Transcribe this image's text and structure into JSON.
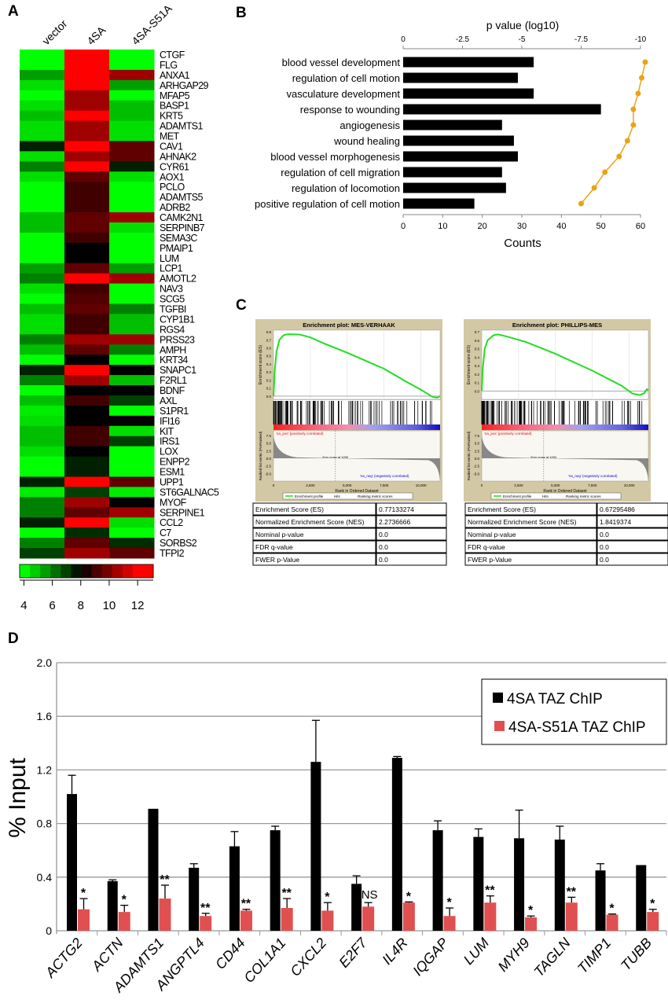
{
  "colors": {
    "heat_low": "#00ff00",
    "heat_mid": "#000000",
    "heat_high": "#ff0000",
    "bar_black": "#000000",
    "bar_red": "#e05050",
    "pvalue_line": "#e8a317",
    "es_curve": "#22dd22",
    "gsea_frame": "#d3c8a4"
  },
  "panel_labels": {
    "a": "A",
    "b": "B",
    "c": "C",
    "d": "D"
  },
  "chart_data": [
    {
      "panel": "A",
      "type": "heatmap",
      "columns": [
        "vector",
        "4SA",
        "4SA-S51A"
      ],
      "color_scale": {
        "colors": [
          "green",
          "black",
          "red"
        ],
        "ticks": [
          "4",
          "6",
          "8",
          "10",
          "12"
        ],
        "range": [
          3.7,
          13.1
        ]
      },
      "rows": [
        {
          "gene": "CTGF",
          "values": [
            4,
            13,
            4
          ]
        },
        {
          "gene": "FLG",
          "values": [
            4,
            13,
            4
          ]
        },
        {
          "gene": "ANXA1",
          "values": [
            5.5,
            13,
            10.5
          ]
        },
        {
          "gene": "ARHGAP29",
          "values": [
            4.5,
            13,
            5.5
          ]
        },
        {
          "gene": "MFAP5",
          "values": [
            4,
            10.5,
            4
          ]
        },
        {
          "gene": "BASP1",
          "values": [
            4.5,
            10.5,
            5
          ]
        },
        {
          "gene": "KRT5",
          "values": [
            5,
            12,
            5
          ]
        },
        {
          "gene": "ADAMTS1",
          "values": [
            4.5,
            10.5,
            4.5
          ]
        },
        {
          "gene": "MET",
          "values": [
            4.5,
            10.5,
            4.5
          ]
        },
        {
          "gene": "CAV1",
          "values": [
            7.5,
            13,
            9.5
          ]
        },
        {
          "gene": "AHNAK2",
          "values": [
            4.5,
            10.5,
            9.5
          ]
        },
        {
          "gene": "CYR61",
          "values": [
            6,
            12,
            7.5
          ]
        },
        {
          "gene": "AOX1",
          "values": [
            4.5,
            9.5,
            4.5
          ]
        },
        {
          "gene": "PCLO",
          "values": [
            4,
            9,
            4
          ]
        },
        {
          "gene": "ADAMTS5",
          "values": [
            4,
            9,
            4
          ]
        },
        {
          "gene": "ADRB2",
          "values": [
            4,
            9,
            4
          ]
        },
        {
          "gene": "CAMK2N1",
          "values": [
            5,
            9.5,
            10.5
          ]
        },
        {
          "gene": "SERPINB7",
          "values": [
            5,
            9.5,
            4.5
          ]
        },
        {
          "gene": "SEMA3C",
          "values": [
            4,
            9,
            4
          ]
        },
        {
          "gene": "PMAIP1",
          "values": [
            4,
            8,
            4
          ]
        },
        {
          "gene": "LUM",
          "values": [
            4,
            8,
            4
          ]
        },
        {
          "gene": "LCP1",
          "values": [
            5.5,
            9.5,
            5.5
          ]
        },
        {
          "gene": "AMOTL2",
          "values": [
            6,
            12,
            10.5
          ]
        },
        {
          "gene": "NAV3",
          "values": [
            4.5,
            9,
            4
          ]
        },
        {
          "gene": "SCG5",
          "values": [
            4,
            9.3,
            4
          ]
        },
        {
          "gene": "TGFBI",
          "values": [
            5,
            9.5,
            6
          ]
        },
        {
          "gene": "CYP1B1",
          "values": [
            4.5,
            9,
            5
          ]
        },
        {
          "gene": "RGS4",
          "values": [
            4.5,
            9,
            5
          ]
        },
        {
          "gene": "PRSS23",
          "values": [
            6,
            10.5,
            10.5
          ]
        },
        {
          "gene": "AMPH",
          "values": [
            5,
            9.5,
            6
          ]
        },
        {
          "gene": "KRT34",
          "values": [
            4,
            8,
            4
          ]
        },
        {
          "gene": "SNAPC1",
          "values": [
            7.5,
            13,
            8
          ]
        },
        {
          "gene": "F2RL1",
          "values": [
            6,
            10.5,
            5
          ]
        },
        {
          "gene": "BDNF",
          "values": [
            4,
            8,
            8
          ]
        },
        {
          "gene": "AXL",
          "values": [
            5,
            9,
            7
          ]
        },
        {
          "gene": "S1PR1",
          "values": [
            4.3,
            8,
            4
          ]
        },
        {
          "gene": "IFI16",
          "values": [
            4.5,
            8,
            8
          ]
        },
        {
          "gene": "KIT",
          "values": [
            5,
            9,
            4.5
          ]
        },
        {
          "gene": "IRS1",
          "values": [
            5,
            9,
            7
          ]
        },
        {
          "gene": "LOX",
          "values": [
            4.5,
            8,
            4
          ]
        },
        {
          "gene": "ENPP2",
          "values": [
            4,
            7.5,
            4
          ]
        },
        {
          "gene": "ESM1",
          "values": [
            4,
            7.5,
            4
          ]
        },
        {
          "gene": "UPP1",
          "values": [
            7.5,
            13,
            9.5
          ]
        },
        {
          "gene": "ST6GALNAC5",
          "values": [
            4.3,
            7,
            4.3
          ]
        },
        {
          "gene": "MYOF",
          "values": [
            6,
            10.5,
            8
          ]
        },
        {
          "gene": "SERPINE1",
          "values": [
            6,
            9.5,
            10.5
          ]
        },
        {
          "gene": "CCL2",
          "values": [
            7.5,
            13,
            4.5
          ]
        },
        {
          "gene": "C7",
          "values": [
            4,
            7.3,
            4
          ]
        },
        {
          "gene": "SORBS2",
          "values": [
            6,
            9.5,
            7.3
          ]
        },
        {
          "gene": "TFPI2",
          "values": [
            7,
            10.5,
            9.5
          ]
        }
      ]
    },
    {
      "panel": "B",
      "type": "bar",
      "orientation": "horizontal",
      "categories": [
        "blood vessel development",
        "regulation of cell motion",
        "vasculature development",
        "response to wounding",
        "angiogenesis",
        "wound healing",
        "blood vessel morphogenesis",
        "regulation of cell migration",
        "regulation of locomotion",
        "positive regulation of cell motion"
      ],
      "counts": [
        33,
        29,
        33,
        50,
        25,
        28,
        29,
        25,
        26,
        18
      ],
      "p_value_log10": [
        -10.2,
        -10.05,
        -9.9,
        -9.7,
        -9.7,
        -9.45,
        -9.1,
        -8.5,
        -8.05,
        -7.5
      ],
      "xlabel": "Counts",
      "xlim": [
        0,
        60
      ],
      "xticks": [
        "0",
        "10",
        "20",
        "30",
        "40",
        "50",
        "60"
      ],
      "top_axis_label": "p value (log10)",
      "top_xlim": [
        0,
        -10
      ],
      "top_xticks": [
        "0",
        "-2.5",
        "-5",
        "-7.5",
        "-10"
      ]
    },
    {
      "panel": "C",
      "type": "line",
      "plots": [
        {
          "title": "Enrichment plot: MES-VERHAAK",
          "es_ticks": [
            "0.8",
            "0.7",
            "0.6",
            "0.5",
            "0.4",
            "0.3",
            "0.2",
            "0.1",
            "0.0"
          ],
          "es_range": [
            -0.04,
            0.82
          ],
          "es_curve": [
            [
              0,
              0
            ],
            [
              80,
              0.3
            ],
            [
              200,
              0.55
            ],
            [
              400,
              0.7
            ],
            [
              700,
              0.76
            ],
            [
              1000,
              0.77
            ],
            [
              1800,
              0.765
            ],
            [
              2500,
              0.73
            ],
            [
              3500,
              0.65
            ],
            [
              5000,
              0.54
            ],
            [
              6500,
              0.42
            ],
            [
              7500,
              0.34
            ],
            [
              9000,
              0.18
            ],
            [
              10000,
              0.08
            ],
            [
              10800,
              -0.01
            ],
            [
              11100,
              -0.02
            ],
            [
              11300,
              0.0
            ]
          ],
          "table": [
            {
              "label": "Enrichment Score (ES)",
              "value": "0.77133274"
            },
            {
              "label": "Normalized Enrichment Score (NES)",
              "value": "2.2736666"
            },
            {
              "label": "Nominal p-value",
              "value": "0.0"
            },
            {
              "label": "FDR q-value",
              "value": "0.0"
            },
            {
              "label": "FWER p-Value",
              "value": "0.0"
            }
          ]
        },
        {
          "title": "Enrichment plot: PHILLIPS-MES",
          "es_ticks": [
            "0.7",
            "0.6",
            "0.5",
            "0.4",
            "0.3",
            "0.2",
            "0.1",
            "0.0"
          ],
          "es_range": [
            -0.1,
            0.72
          ],
          "es_curve": [
            [
              0,
              0
            ],
            [
              60,
              0.25
            ],
            [
              200,
              0.5
            ],
            [
              400,
              0.6
            ],
            [
              800,
              0.66
            ],
            [
              1100,
              0.67
            ],
            [
              1800,
              0.64
            ],
            [
              3000,
              0.58
            ],
            [
              5000,
              0.44
            ],
            [
              7500,
              0.24
            ],
            [
              9500,
              0.06
            ],
            [
              10200,
              -0.03
            ],
            [
              10700,
              -0.05
            ],
            [
              11000,
              -0.03
            ],
            [
              11200,
              0.02
            ],
            [
              11300,
              0.01
            ]
          ],
          "table": [
            {
              "label": "Enrichment Score (ES)",
              "value": "0.67295486"
            },
            {
              "label": "Normalized Enrichment Score (NES)",
              "value": "1.8419374"
            },
            {
              "label": "Nominal p-value",
              "value": "0.0"
            },
            {
              "label": "FDR q-value",
              "value": "0.0"
            },
            {
              "label": "FWER p-Value",
              "value": "0.0"
            }
          ]
        }
      ],
      "es_axis_label": "Enrichment score (ES)",
      "metric_axis_label": "Ranked list metric (PreRanked)",
      "metric_ticks": [
        "7.5",
        "5.0",
        "2.5",
        "0.0",
        "-2.5",
        "-5.0"
      ],
      "xlabel": "Rank in Ordered Dataset",
      "xticks": [
        "0",
        "2,500",
        "5,000",
        "7,500",
        "10,000"
      ],
      "xlim": [
        0,
        11300
      ],
      "pos_label": "'na_pos' (positively correlated)",
      "neg_label": "'na_neg' (negatively correlated)",
      "zero_cross": "Zero cross at 4200",
      "legend": [
        "Enrichment profile",
        "Hits",
        "Ranking metric scores"
      ]
    },
    {
      "panel": "D",
      "type": "bar",
      "categories": [
        "ACTG2",
        "ACTN",
        "ADAMTS1",
        "ANGPTL4",
        "CD44",
        "COL1A1",
        "CXCL2",
        "E2F7",
        "IL4R",
        "IQGAP",
        "LUM",
        "MYH9",
        "TAGLN",
        "TIMP1",
        "TUBB"
      ],
      "series": [
        {
          "name": "4SA TAZ ChIP",
          "values": [
            1.02,
            0.37,
            0.91,
            0.47,
            0.63,
            0.75,
            1.26,
            0.35,
            1.29,
            0.75,
            0.7,
            0.69,
            0.68,
            0.45,
            0.49
          ],
          "errors": [
            0.14,
            0.01,
            0,
            0.03,
            0.11,
            0.03,
            0.31,
            0.06,
            0.01,
            0.07,
            0.06,
            0.21,
            0.1,
            0.05,
            0
          ]
        },
        {
          "name": "4SA-S51A TAZ ChIP",
          "values": [
            0.16,
            0.14,
            0.24,
            0.11,
            0.15,
            0.17,
            0.15,
            0.18,
            0.21,
            0.11,
            0.21,
            0.1,
            0.21,
            0.12,
            0.14
          ],
          "errors": [
            0.08,
            0.05,
            0.1,
            0.02,
            0.01,
            0.07,
            0.06,
            0.03,
            0.005,
            0.06,
            0.05,
            0.01,
            0.04,
            0.005,
            0.02
          ]
        }
      ],
      "significance": [
        "*",
        "*",
        "**",
        "**",
        "**",
        "**",
        "*",
        "NS",
        "*",
        "*",
        "**",
        "*",
        "**",
        "*",
        "*"
      ],
      "ylabel": "% Input",
      "ylim": [
        0,
        2.0
      ],
      "yticks": [
        "0",
        "0.4",
        "0.8",
        "1.2",
        "1.6",
        "2.0"
      ],
      "grid": true,
      "legend_position": "top-right"
    }
  ]
}
